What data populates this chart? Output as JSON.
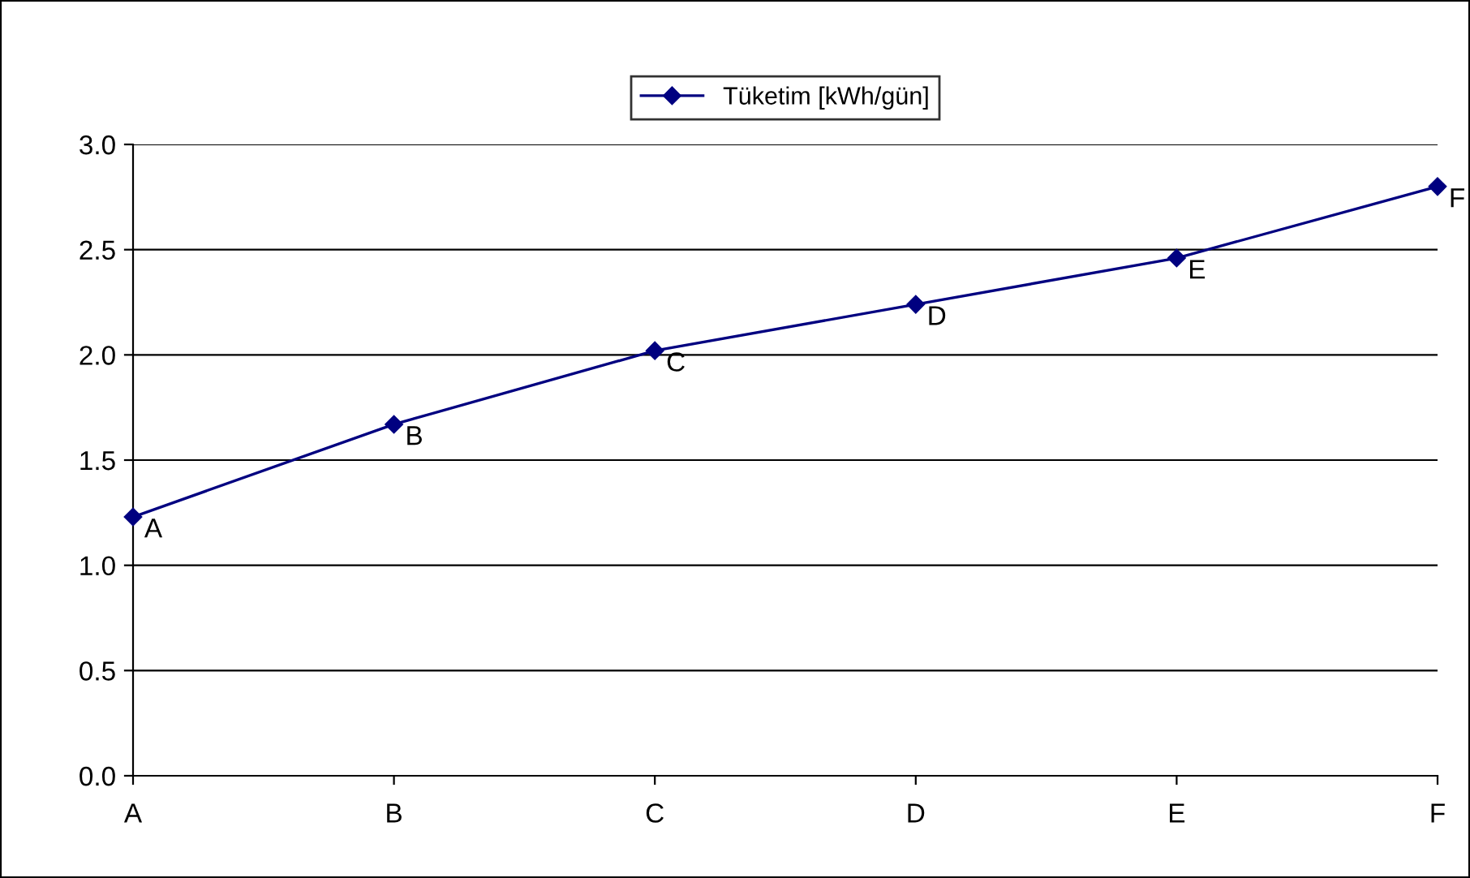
{
  "chart_data": {
    "type": "line",
    "categories": [
      "A",
      "B",
      "C",
      "D",
      "E",
      "F"
    ],
    "series": [
      {
        "name": "Tüketim [kWh/gün]",
        "color": "#000080",
        "values": [
          1.23,
          1.67,
          2.02,
          2.24,
          2.46,
          2.8
        ]
      }
    ],
    "ylim": [
      0,
      3
    ],
    "yticks": [
      {
        "value": 0,
        "label": "0.0"
      },
      {
        "value": 0.5,
        "label": "0.5"
      },
      {
        "value": 1,
        "label": "1.0"
      },
      {
        "value": 1.5,
        "label": "1.5"
      },
      {
        "value": 2,
        "label": "2.0"
      },
      {
        "value": 2.5,
        "label": "2.5"
      },
      {
        "value": 3,
        "label": "3.0"
      }
    ],
    "grid": "y",
    "legend": "top",
    "marker": "diamond",
    "line_style": "solid",
    "annotations": [
      {
        "text": "A",
        "x": "A",
        "y": 1.23
      },
      {
        "text": "B",
        "x": "B",
        "y": 1.67
      },
      {
        "text": "C",
        "x": "C",
        "y": 2.02
      },
      {
        "text": "D",
        "x": "D",
        "y": 2.24
      },
      {
        "text": "E",
        "x": "E",
        "y": 2.46
      },
      {
        "text": "F",
        "x": "F",
        "y": 2.8
      }
    ]
  }
}
